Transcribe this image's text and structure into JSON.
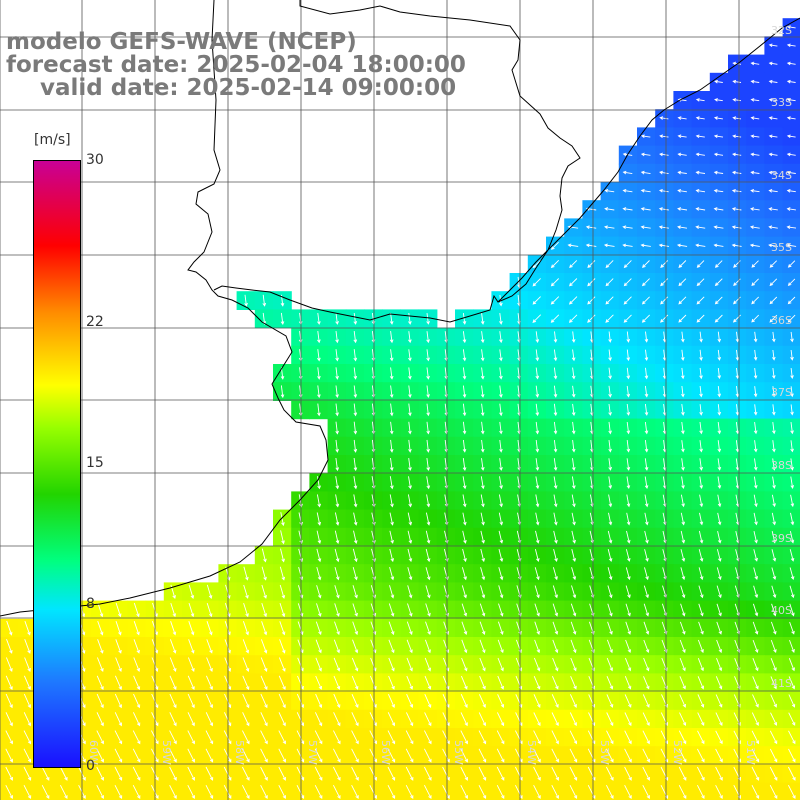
{
  "title": {
    "line1": "modelo GEFS-WAVE (NCEP)",
    "line2": "forecast date: 2025-02-04 18:00:00",
    "line3": "valid date: 2025-02-14 09:00:00"
  },
  "colorbar": {
    "unit": "[m/s]",
    "ticks": [
      {
        "label": "30",
        "value": 30
      },
      {
        "label": "22",
        "value": 22
      },
      {
        "label": "15",
        "value": 15
      },
      {
        "label": "8",
        "value": 8
      },
      {
        "label": "0",
        "value": 0
      }
    ]
  },
  "lat_labels": [
    "32S",
    "33S",
    "34S",
    "35S",
    "36S",
    "37S",
    "38S",
    "39S",
    "40S",
    "41S"
  ],
  "lon_labels": [
    "60W",
    "59W",
    "58W",
    "57W",
    "56W",
    "55W",
    "54W",
    "53W",
    "52W",
    "51W"
  ],
  "colors": {
    "land": "#ffffff",
    "grid": "#555555",
    "coast": "#000000",
    "arrows": "#ffffff",
    "title": "#7a7a7a"
  }
}
